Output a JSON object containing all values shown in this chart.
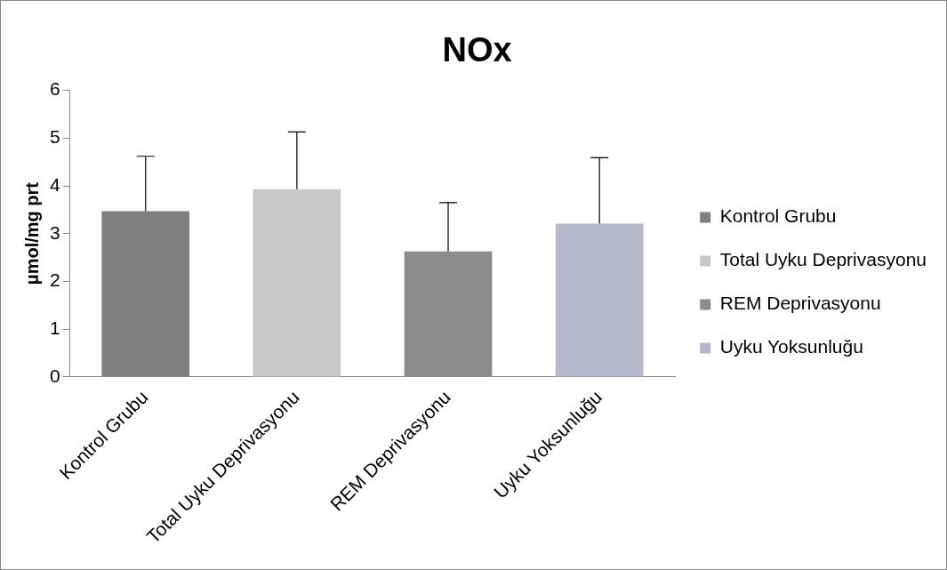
{
  "chart_data": {
    "type": "bar",
    "title": "NOx",
    "ylabel": "μmol/mg prt",
    "categories": [
      "Kontrol Grubu",
      "Total Uyku Deprivasyonu",
      "REM Deprivasyonu",
      "Uyku Yoksunluğu"
    ],
    "series": [
      {
        "name": "Kontrol Grubu",
        "color": "#808080",
        "values": [
          3.47,
          null,
          null,
          null
        ],
        "errors": [
          [
            3.47,
            4.62
          ],
          null,
          null,
          null
        ]
      },
      {
        "name": "Total Uyku Deprivasyonu",
        "color": "#c8c8c8",
        "values": [
          null,
          3.93,
          null,
          null
        ],
        "errors": [
          null,
          [
            3.93,
            5.13
          ],
          null,
          null
        ]
      },
      {
        "name": "REM Deprivasyonu",
        "color": "#8c8c8c",
        "values": [
          null,
          null,
          2.63,
          null
        ],
        "errors": [
          null,
          null,
          [
            2.63,
            3.65
          ],
          null
        ]
      },
      {
        "name": "Uyku Yoksunluğu",
        "color": "#b4b8c8",
        "values": [
          null,
          null,
          null,
          3.21
        ],
        "errors": [
          null,
          null,
          null,
          [
            3.21,
            4.59
          ]
        ]
      }
    ],
    "ylim": [
      0,
      6
    ],
    "yticks": [
      0,
      1,
      2,
      3,
      4,
      5,
      6
    ],
    "grid": false,
    "legend": "right"
  }
}
